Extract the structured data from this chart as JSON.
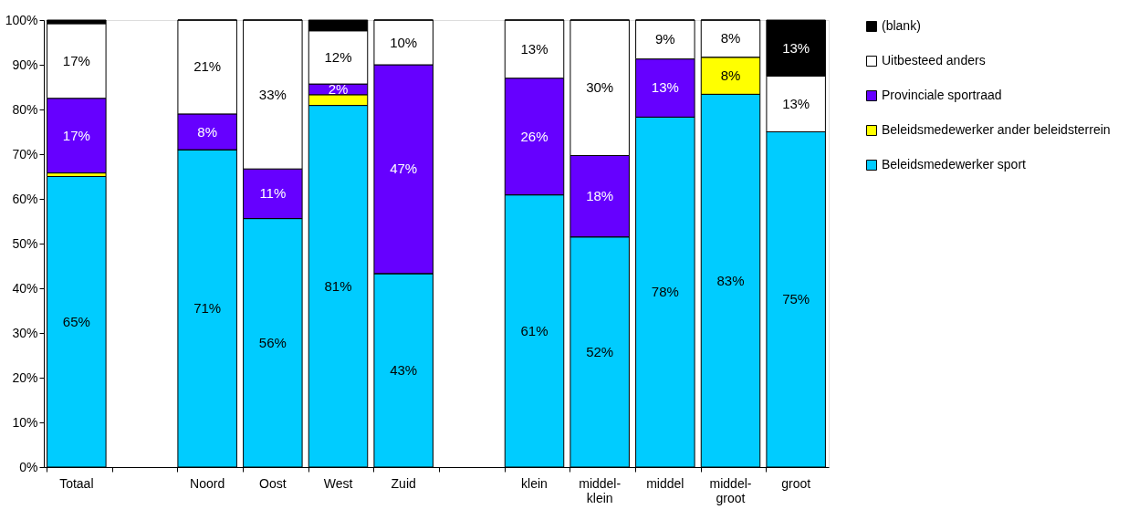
{
  "chart_data": {
    "type": "bar",
    "stacked": true,
    "legend": "right",
    "grid": false,
    "categories": [
      "Totaal",
      null,
      "Noord",
      "Oost",
      "West",
      "Zuid",
      null,
      "klein",
      "middel-klein",
      "middel",
      "middel-groot",
      "groot"
    ],
    "ylim": [
      0,
      100
    ],
    "yticks": [
      {
        "value": 0,
        "label": "0%"
      },
      {
        "value": 10,
        "label": "10%"
      },
      {
        "value": 20,
        "label": "20%"
      },
      {
        "value": 30,
        "label": "30%"
      },
      {
        "value": 40,
        "label": "40%"
      },
      {
        "value": 50,
        "label": "50%"
      },
      {
        "value": 60,
        "label": "60%"
      },
      {
        "value": 70,
        "label": "70%"
      },
      {
        "value": 80,
        "label": "80%"
      },
      {
        "value": 90,
        "label": "90%"
      },
      {
        "value": 100,
        "label": "100%"
      }
    ],
    "series": [
      {
        "name": "Beleidsmedewerker sport",
        "color": "#00ccff",
        "values": [
          65,
          null,
          71,
          55.6,
          80.9,
          43.3,
          null,
          60.9,
          51.5,
          78.3,
          83.4,
          75
        ],
        "value_labels": [
          "65%",
          null,
          "71%",
          "56%",
          "81%",
          "43%",
          null,
          "61%",
          "52%",
          "78%",
          "83%",
          "75%"
        ]
      },
      {
        "name": "Beleidsmedewerker ander beleidsterrein",
        "color": "#ffff00",
        "values": [
          0.8,
          null,
          0,
          0,
          2.4,
          0,
          null,
          0,
          0,
          0,
          8.3,
          0
        ],
        "value_labels": [
          null,
          null,
          null,
          null,
          null,
          null,
          null,
          null,
          null,
          null,
          "8%",
          null
        ]
      },
      {
        "name": "Provinciale sportraad",
        "color": "#6600ff",
        "values": [
          16.7,
          null,
          8,
          11.1,
          2.4,
          46.7,
          null,
          26.1,
          18.2,
          13,
          0,
          0
        ],
        "value_labels": [
          "17%",
          null,
          "8%",
          "11%",
          "2%",
          "47%",
          null,
          "26%",
          "18%",
          "13%",
          null,
          null
        ]
      },
      {
        "name": "Uitbesteed anders",
        "color": "#ffffff",
        "values": [
          16.7,
          null,
          21,
          33.3,
          11.9,
          10,
          null,
          13,
          30.3,
          8.7,
          8.3,
          12.5
        ],
        "value_labels": [
          "17%",
          null,
          "21%",
          "33%",
          "12%",
          "10%",
          null,
          "13%",
          "30%",
          "9%",
          "8%",
          "13%"
        ]
      },
      {
        "name": "(blank)",
        "color": "#000000",
        "values": [
          0.8,
          null,
          0,
          0,
          2.4,
          0,
          null,
          0,
          0,
          0,
          0,
          12.5
        ],
        "value_labels": [
          null,
          null,
          null,
          null,
          null,
          null,
          null,
          null,
          null,
          null,
          null,
          "13%"
        ]
      }
    ]
  }
}
